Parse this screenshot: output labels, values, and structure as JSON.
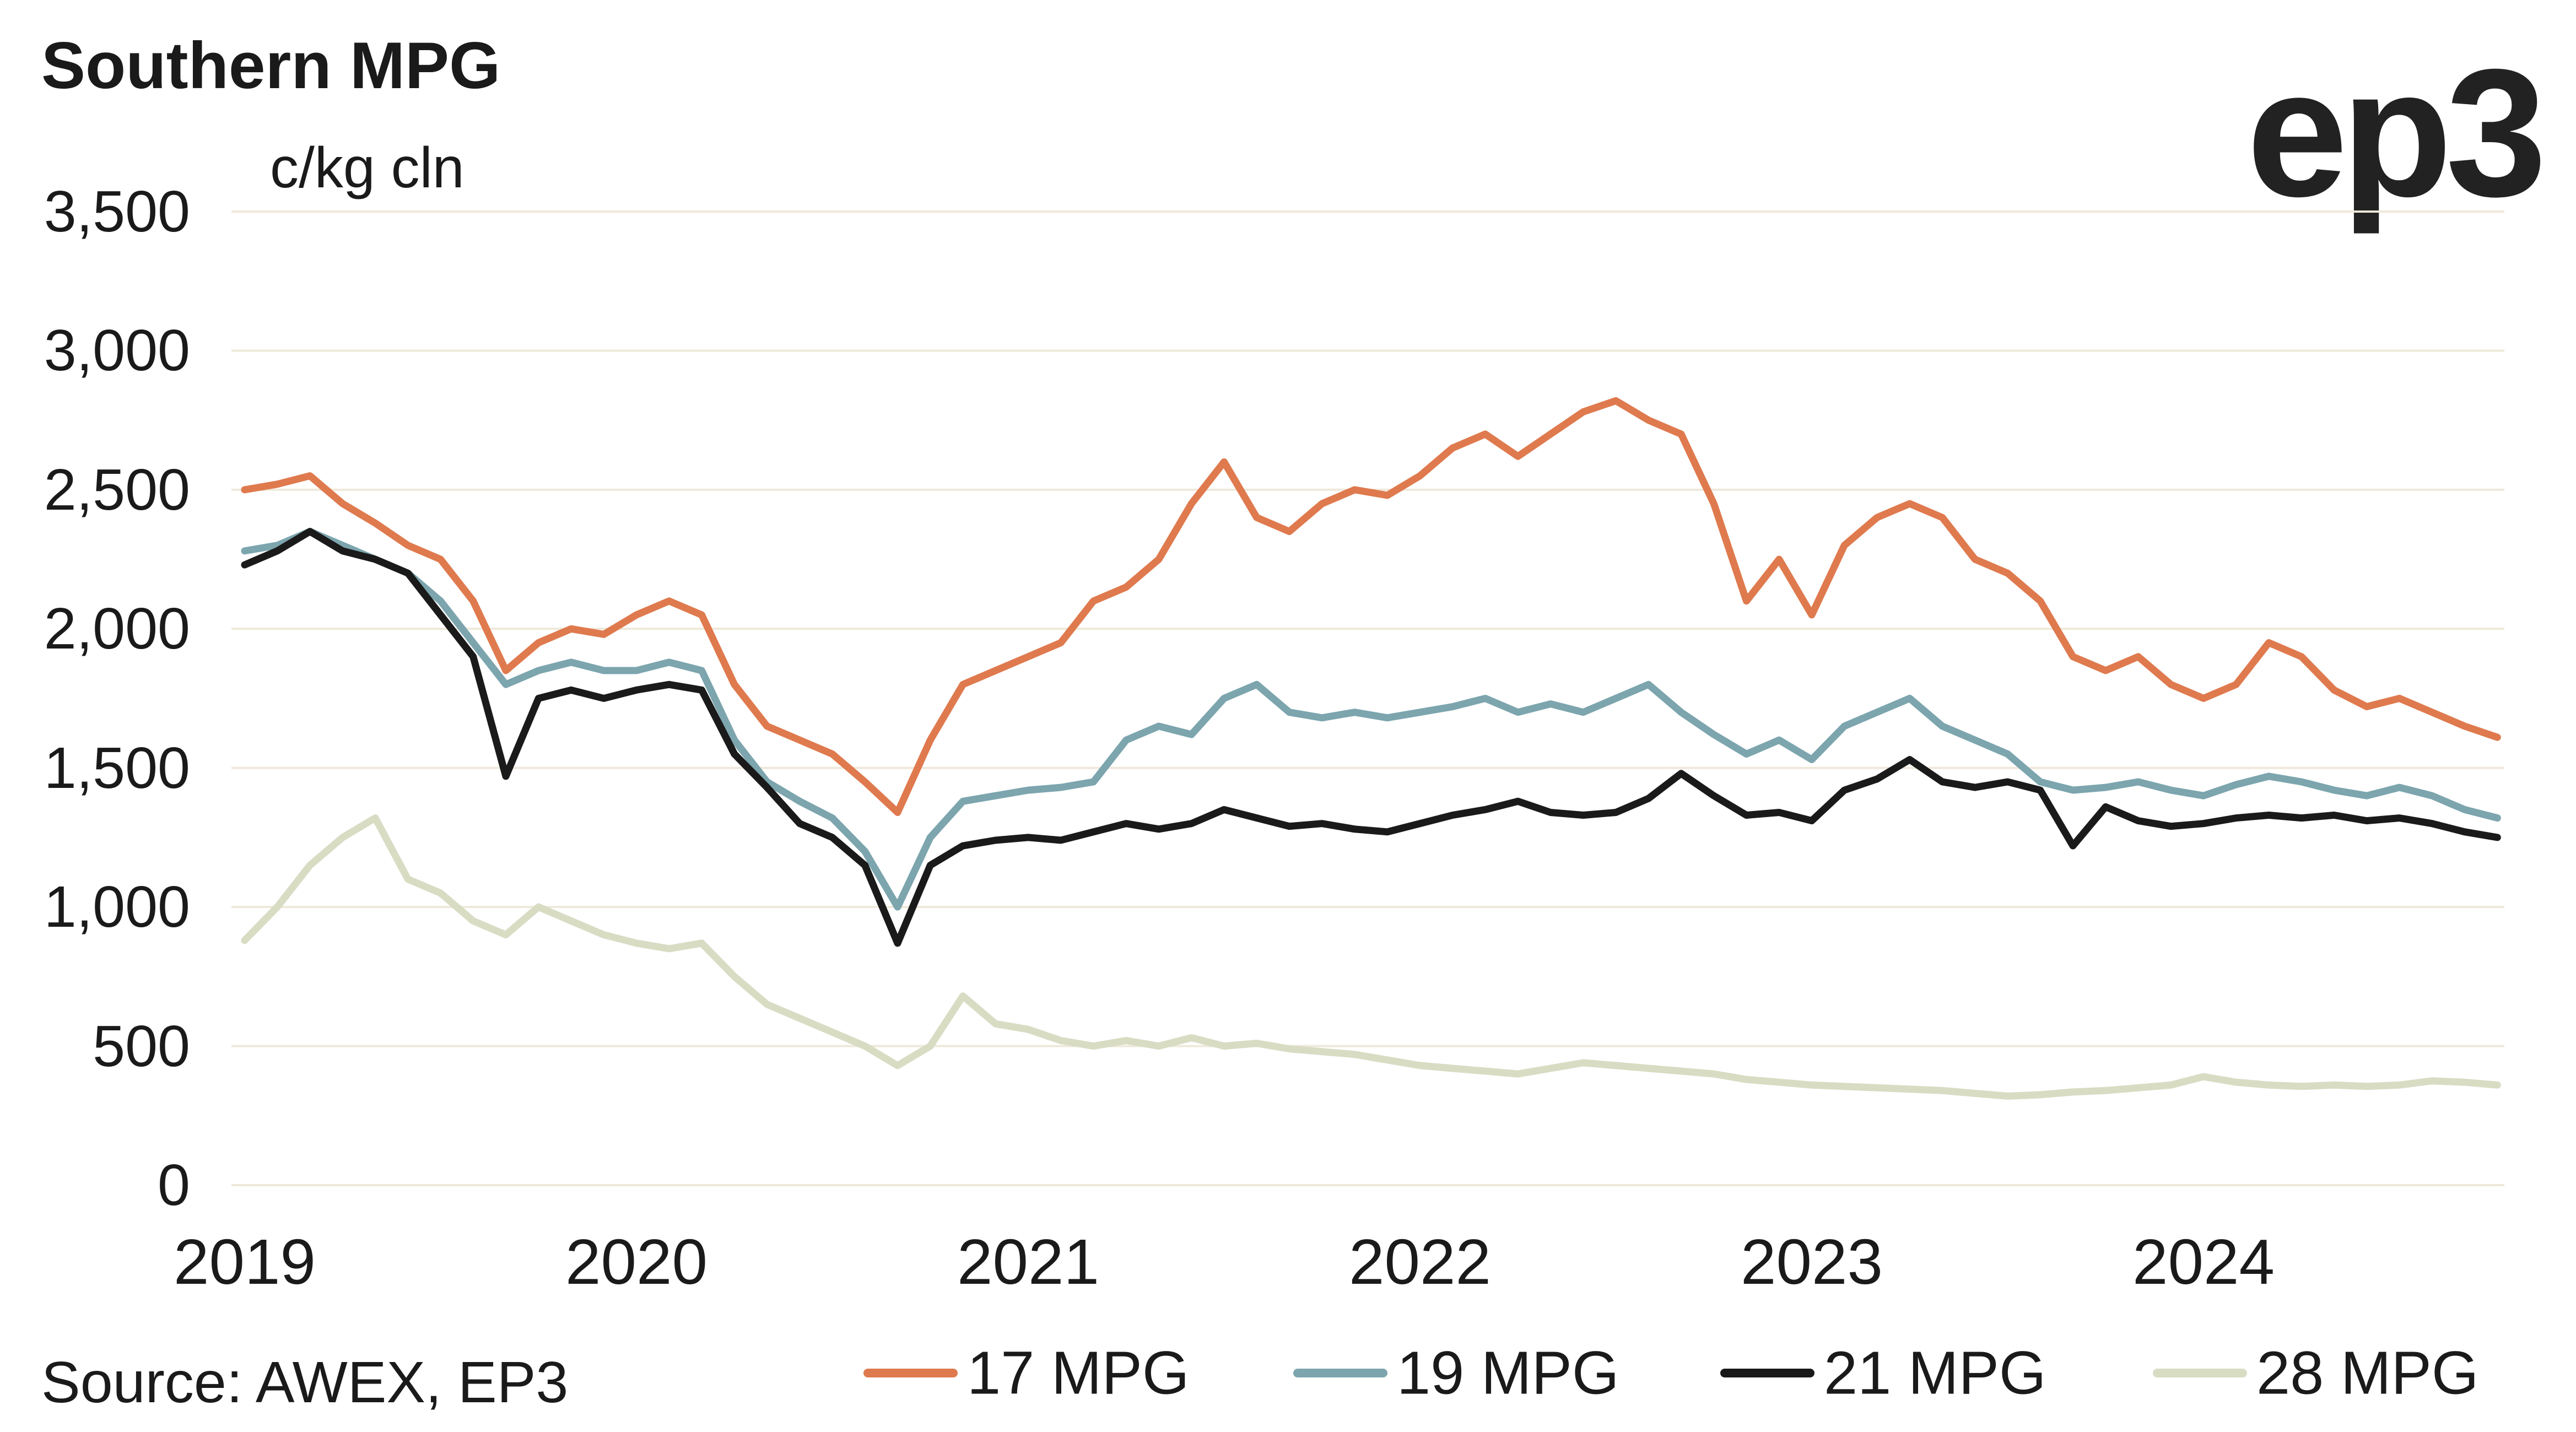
{
  "header": {
    "title": "Southern MPG",
    "unit": "c/kg cln",
    "logo": "ep3"
  },
  "footer": {
    "source": "Source: AWEX, EP3"
  },
  "colors": {
    "grid": "#efe9db",
    "background": "#ffffff",
    "text": "#1a1a1a",
    "series_17mpg": "#df7a4e",
    "series_19mpg": "#7ca5ae",
    "series_21mpg": "#1a1a1a",
    "series_28mpg": "#d8dcc3"
  },
  "chart_data": {
    "type": "line",
    "title": "Southern MPG",
    "ylabel": "c/kg cln",
    "xlabel": "",
    "grid": "horizontal",
    "legend_position": "bottom",
    "x_start_year": 2019,
    "x_points_per_year": 12,
    "xtick_labels": [
      "2019",
      "2020",
      "2021",
      "2022",
      "2023",
      "2024"
    ],
    "ylim": [
      0,
      3500
    ],
    "ytick_values": [
      3500,
      3000,
      2500,
      2000,
      1500,
      1000,
      500,
      0
    ],
    "ytick_labels": [
      "3,500",
      "3,000",
      "2,500",
      "2,000",
      "1,500",
      "1,000",
      "500",
      "0"
    ],
    "series": [
      {
        "name": "17 MPG",
        "color": "#df7a4e",
        "values": [
          2500,
          2520,
          2550,
          2450,
          2380,
          2300,
          2250,
          2100,
          1850,
          1950,
          2000,
          1980,
          2050,
          2100,
          2050,
          1800,
          1650,
          1600,
          1550,
          1450,
          1340,
          1600,
          1800,
          1850,
          1900,
          1950,
          2100,
          2150,
          2250,
          2450,
          2600,
          2400,
          2350,
          2450,
          2500,
          2480,
          2550,
          2650,
          2700,
          2620,
          2700,
          2780,
          2820,
          2750,
          2700,
          2450,
          2100,
          2250,
          2050,
          2300,
          2400,
          2450,
          2400,
          2250,
          2200,
          2100,
          1900,
          1850,
          1900,
          1800,
          1750,
          1800,
          1950,
          1900,
          1780,
          1720,
          1750,
          1700,
          1650,
          1610
        ]
      },
      {
        "name": "19 MPG",
        "color": "#7ca5ae",
        "values": [
          2280,
          2300,
          2350,
          2300,
          2250,
          2200,
          2100,
          1950,
          1800,
          1850,
          1880,
          1850,
          1850,
          1880,
          1850,
          1600,
          1450,
          1380,
          1320,
          1200,
          1000,
          1250,
          1380,
          1400,
          1420,
          1430,
          1450,
          1600,
          1650,
          1620,
          1750,
          1800,
          1700,
          1680,
          1700,
          1680,
          1700,
          1720,
          1750,
          1700,
          1730,
          1700,
          1750,
          1800,
          1700,
          1620,
          1550,
          1600,
          1530,
          1650,
          1700,
          1750,
          1650,
          1600,
          1550,
          1450,
          1420,
          1430,
          1450,
          1420,
          1400,
          1440,
          1470,
          1450,
          1420,
          1400,
          1430,
          1400,
          1350,
          1320
        ]
      },
      {
        "name": "21 MPG",
        "color": "#1a1a1a",
        "values": [
          2230,
          2280,
          2350,
          2280,
          2250,
          2200,
          2050,
          1900,
          1470,
          1750,
          1780,
          1750,
          1780,
          1800,
          1780,
          1550,
          1430,
          1300,
          1250,
          1150,
          870,
          1150,
          1220,
          1240,
          1250,
          1240,
          1270,
          1300,
          1280,
          1300,
          1350,
          1320,
          1290,
          1300,
          1280,
          1270,
          1300,
          1330,
          1350,
          1380,
          1340,
          1330,
          1340,
          1390,
          1480,
          1400,
          1330,
          1340,
          1310,
          1420,
          1460,
          1530,
          1450,
          1430,
          1450,
          1420,
          1220,
          1360,
          1310,
          1290,
          1300,
          1320,
          1330,
          1320,
          1330,
          1310,
          1320,
          1300,
          1270,
          1250
        ]
      },
      {
        "name": "28 MPG",
        "color": "#d8dcc3",
        "values": [
          880,
          1000,
          1150,
          1250,
          1320,
          1100,
          1050,
          950,
          900,
          1000,
          950,
          900,
          870,
          850,
          870,
          750,
          650,
          600,
          550,
          500,
          430,
          500,
          680,
          580,
          560,
          520,
          500,
          520,
          500,
          530,
          500,
          510,
          490,
          480,
          470,
          450,
          430,
          420,
          410,
          400,
          420,
          440,
          430,
          420,
          410,
          400,
          380,
          370,
          360,
          355,
          350,
          345,
          340,
          330,
          320,
          325,
          335,
          340,
          350,
          360,
          390,
          370,
          360,
          355,
          360,
          355,
          360,
          375,
          370,
          360
        ]
      }
    ]
  }
}
